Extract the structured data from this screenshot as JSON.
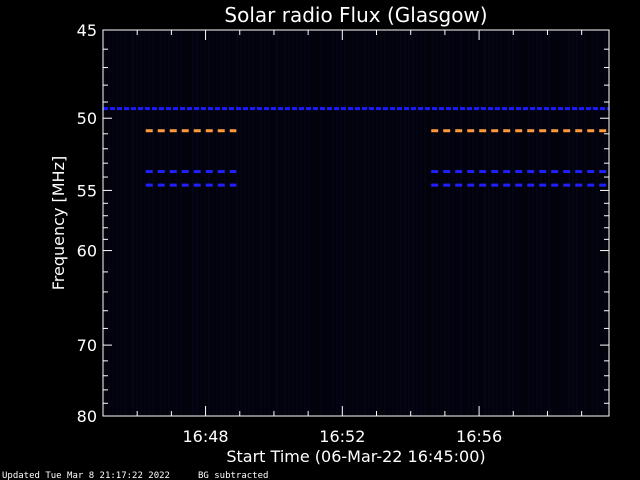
{
  "chart_data": {
    "type": "heatmap",
    "title": "Solar radio Flux (Glasgow)",
    "ylabel": "Frequency [MHz]",
    "xlabel": "Start Time (06-Mar-22 16:45:00)",
    "x_ticks": [
      {
        "minutes": 3,
        "label": "16:48"
      },
      {
        "minutes": 7,
        "label": "16:52"
      },
      {
        "minutes": 11,
        "label": "16:56"
      }
    ],
    "xlim_minutes": [
      0,
      14.8
    ],
    "y_ticks": [
      {
        "mhz": 45,
        "label": "45"
      },
      {
        "mhz": 50,
        "label": "50"
      },
      {
        "mhz": 55,
        "label": "55"
      },
      {
        "mhz": 60,
        "label": "60"
      },
      {
        "mhz": 70,
        "label": "70"
      },
      {
        "mhz": 80,
        "label": "80"
      }
    ],
    "ylim_mhz": [
      45,
      80
    ],
    "y_scale": "reciprocal",
    "background_color": "#000000",
    "plot_background_color": "#02020a",
    "features": [
      {
        "name": "blue continuous band",
        "mhz": 49.4,
        "t_start": 0,
        "t_end": 14.8,
        "color": "#1a1aff"
      },
      {
        "name": "orange dashed band",
        "mhz": 50.8,
        "t_start": 1.25,
        "t_end": 3.9,
        "color": "#ff9a3c"
      },
      {
        "name": "orange dashed band",
        "mhz": 50.8,
        "t_start": 9.6,
        "t_end": 14.8,
        "color": "#ff9a3c"
      },
      {
        "name": "blue dashed band",
        "mhz": 53.6,
        "t_start": 1.25,
        "t_end": 3.9,
        "color": "#2020ff"
      },
      {
        "name": "blue dashed band",
        "mhz": 54.6,
        "t_start": 1.25,
        "t_end": 3.9,
        "color": "#2020ff"
      },
      {
        "name": "blue dashed band",
        "mhz": 53.6,
        "t_start": 9.6,
        "t_end": 14.8,
        "color": "#2020ff"
      },
      {
        "name": "blue dashed band",
        "mhz": 54.6,
        "t_start": 9.6,
        "t_end": 14.8,
        "color": "#2020ff"
      }
    ]
  },
  "footer": {
    "updated": "Updated Tue Mar  8 21:17:22 2022",
    "note": "BG subtracted"
  }
}
